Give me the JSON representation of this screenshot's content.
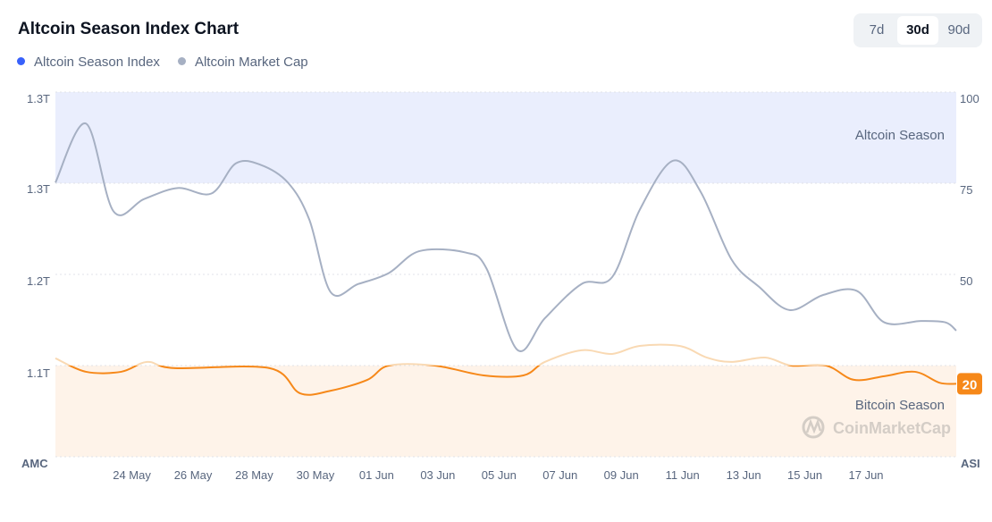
{
  "header": {
    "title": "Altcoin Season Index Chart"
  },
  "legend": [
    {
      "label": "Altcoin Season Index",
      "color": "#3861fb"
    },
    {
      "label": "Altcoin Market Cap",
      "color": "#a6b0c3"
    }
  ],
  "tabs": [
    {
      "label": "7d",
      "active": false
    },
    {
      "label": "30d",
      "active": true
    },
    {
      "label": "90d",
      "active": false
    }
  ],
  "watermark": "CoinMarketCap",
  "chart_data": {
    "type": "line",
    "title": "Altcoin Season Index Chart",
    "x_unit": "days since 22 May",
    "xlim": [
      -0.5,
      28.95
    ],
    "x_ticks": [
      {
        "x": 2,
        "label": "24 May"
      },
      {
        "x": 4,
        "label": "26 May"
      },
      {
        "x": 6,
        "label": "28 May"
      },
      {
        "x": 8,
        "label": "30 May"
      },
      {
        "x": 10,
        "label": "01 Jun"
      },
      {
        "x": 12,
        "label": "03 Jun"
      },
      {
        "x": 14,
        "label": "05 Jun"
      },
      {
        "x": 16,
        "label": "07 Jun"
      },
      {
        "x": 18,
        "label": "09 Jun"
      },
      {
        "x": 20,
        "label": "11 Jun"
      },
      {
        "x": 22,
        "label": "13 Jun"
      },
      {
        "x": 24,
        "label": "15 Jun"
      },
      {
        "x": 26,
        "label": "17 Jun"
      }
    ],
    "left_axis": {
      "label": "AMC",
      "ylim": [
        1.067,
        1.333
      ],
      "ticks": [
        {
          "v": 1.333,
          "label": "1.3T"
        },
        {
          "v": 1.267,
          "label": "1.3T"
        },
        {
          "v": 1.2,
          "label": "1.2T"
        },
        {
          "v": 1.133,
          "label": "1.1T"
        }
      ]
    },
    "right_axis": {
      "label": "ASI",
      "ylim": [
        0,
        100
      ],
      "ticks": [
        {
          "v": 100,
          "label": "100"
        },
        {
          "v": 75,
          "label": "75"
        },
        {
          "v": 50,
          "label": "50"
        }
      ]
    },
    "zones": [
      {
        "label": "Altcoin Season",
        "from": 75,
        "to": 100,
        "color": "#eaeefd"
      },
      {
        "label": "Bitcoin Season",
        "from": 0,
        "to": 25,
        "color": "#fef3e9"
      }
    ],
    "current_value": {
      "label": "20",
      "color": "#f68819"
    },
    "series": [
      {
        "name": "Altcoin Market Cap",
        "axis": "left",
        "color": "#a6b0c3",
        "unit": "T",
        "x": [
          -0.5,
          0.5,
          1.4,
          2.4,
          3.5,
          4.6,
          5.4,
          6.2,
          7.1,
          7.8,
          8.5,
          9.4,
          10.4,
          11.4,
          12.9,
          13.6,
          14.6,
          15.5,
          16.7,
          17.7,
          18.6,
          19.7,
          20.6,
          21.6,
          22.5,
          23.5,
          24.6,
          25.7,
          26.6,
          27.8,
          28.6,
          28.95
        ],
        "y": [
          1.267,
          1.31,
          1.246,
          1.255,
          1.263,
          1.259,
          1.281,
          1.28,
          1.267,
          1.24,
          1.187,
          1.193,
          1.201,
          1.217,
          1.216,
          1.204,
          1.145,
          1.168,
          1.193,
          1.198,
          1.247,
          1.283,
          1.26,
          1.211,
          1.191,
          1.174,
          1.185,
          1.188,
          1.165,
          1.166,
          1.165,
          1.159
        ]
      },
      {
        "name": "Altcoin Season Index",
        "axis": "right",
        "color": "#f68819",
        "pale_color": "#f9d9b3",
        "x": [
          -0.5,
          0.5,
          1.65,
          2.5,
          3.4,
          6.5,
          7.5,
          8.5,
          9.7,
          10.4,
          11.9,
          13.5,
          14.8,
          15.5,
          16.7,
          17.7,
          18.6,
          19.9,
          20.8,
          21.6,
          22.7,
          23.55,
          24.7,
          25.6,
          26.6,
          27.6,
          28.4,
          28.95
        ],
        "y": [
          27,
          23.3,
          23.3,
          26,
          24.3,
          24.3,
          17.4,
          18.1,
          21.1,
          25,
          25,
          22.3,
          22.3,
          26,
          29.2,
          28.2,
          30.4,
          30.4,
          27.2,
          26,
          27.2,
          25,
          25,
          21.1,
          22.1,
          23.3,
          20.3,
          20
        ]
      }
    ]
  }
}
